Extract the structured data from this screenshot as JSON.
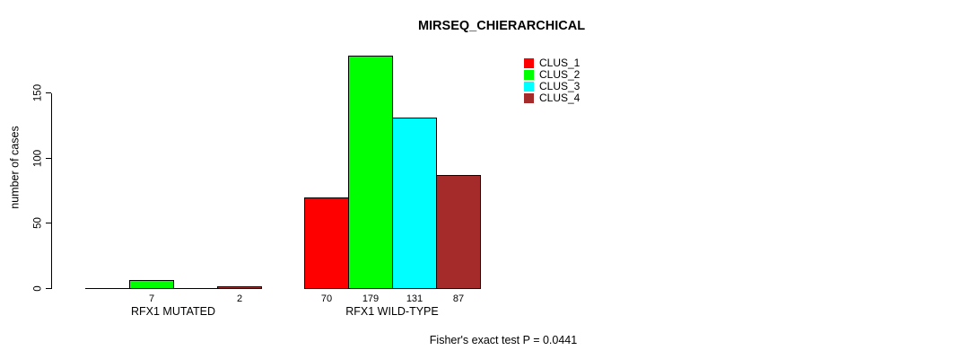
{
  "title": "MIRSEQ_CHIERARCHICAL",
  "footer": {
    "stat_text": "Fisher's exact test P = 0.0441"
  },
  "chart_data": {
    "type": "bar",
    "title": "MIRSEQ_CHIERARCHICAL",
    "xlabel": "",
    "ylabel": "number of cases",
    "ylim": [
      0,
      185
    ],
    "yticks": [
      0,
      50,
      100,
      150
    ],
    "grid": false,
    "legend_position": "top-right",
    "bar_border_color": "#000000",
    "series": [
      {
        "name": "CLUS_1",
        "color": "#ff0000"
      },
      {
        "name": "CLUS_2",
        "color": "#00ff00"
      },
      {
        "name": "CLUS_3",
        "color": "#00ffff"
      },
      {
        "name": "CLUS_4",
        "color": "#a52a2a"
      }
    ],
    "groups": [
      {
        "label": "RFX1 MUTATED",
        "values": [
          0,
          7,
          0,
          2
        ],
        "bar_labels": [
          "",
          "7",
          "",
          "2"
        ]
      },
      {
        "label": "RFX1 WILD-TYPE",
        "values": [
          70,
          179,
          131,
          87
        ],
        "bar_labels": [
          "70",
          "179",
          "131",
          "87"
        ]
      }
    ]
  }
}
